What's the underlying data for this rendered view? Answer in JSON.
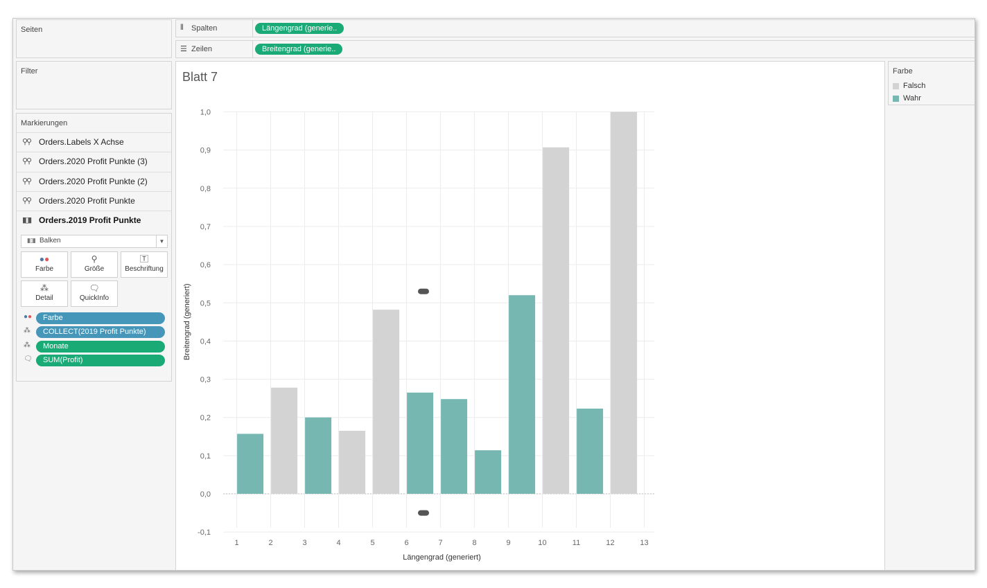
{
  "panels": {
    "pages_title": "Seiten",
    "filter_title": "Filter",
    "marks_title": "Markierungen"
  },
  "layers": [
    {
      "label": "Orders.Labels X Achse",
      "icon": "map-marks-icon"
    },
    {
      "label": "Orders.2020 Profit Punkte (3)",
      "icon": "map-marks-icon"
    },
    {
      "label": "Orders.2020 Profit Punkte (2)",
      "icon": "map-marks-icon"
    },
    {
      "label": "Orders.2020 Profit Punkte",
      "icon": "map-marks-icon"
    },
    {
      "label": "Orders.2019 Profit Punkte",
      "icon": "bar-marks-icon",
      "active": true
    }
  ],
  "mark_type": {
    "value": "Balken",
    "icon": "bar-chart-icon"
  },
  "mark_buttons": {
    "color": "Farbe",
    "size": "Größe",
    "label": "Beschriftung",
    "detail": "Detail",
    "tooltip": "QuickInfo"
  },
  "mark_pills": [
    {
      "text": "Farbe",
      "icon": "color-dots-icon",
      "color": "#4596b8"
    },
    {
      "text": "COLLECT(2019 Profit Punkte)",
      "icon": "detail-icon",
      "color": "#4596b8"
    },
    {
      "text": "Monate",
      "icon": "detail-icon",
      "color": "#1aaa75"
    },
    {
      "text": "SUM(Profit)",
      "icon": "tooltip-icon",
      "color": "#1aaa75"
    }
  ],
  "shelves": {
    "columns": {
      "label": "Spalten",
      "pill": "Längengrad (generie.."
    },
    "rows": {
      "label": "Zeilen",
      "pill": "Breitengrad (generie.."
    }
  },
  "sheet_title": "Blatt 7",
  "legend": {
    "title": "Farbe",
    "items": [
      {
        "label": "Falsch",
        "color": "#d3d3d3"
      },
      {
        "label": "Wahr",
        "color": "#76b7b2"
      }
    ]
  },
  "chart_data": {
    "type": "bar",
    "xlabel": "Längengrad (generiert)",
    "ylabel": "Breitengrad (generiert)",
    "xlim": [
      0.5,
      13
    ],
    "ylim": [
      -0.1,
      1.0
    ],
    "x_ticks": [
      "1",
      "2",
      "3",
      "4",
      "5",
      "6",
      "7",
      "8",
      "9",
      "10",
      "11",
      "12",
      "13"
    ],
    "y_ticks": [
      "1,0",
      "0,9",
      "0,8",
      "0,7",
      "0,6",
      "0,5",
      "0,4",
      "0,3",
      "0,2",
      "0,1",
      "0,0",
      "-0,1"
    ],
    "grid": true,
    "colors": {
      "Wahr": "#76b7b2",
      "Falsch": "#d3d3d3"
    },
    "bars": [
      {
        "x": 1.4,
        "value": 0.157,
        "group": "Wahr"
      },
      {
        "x": 2.4,
        "value": 0.278,
        "group": "Falsch"
      },
      {
        "x": 3.4,
        "value": 0.2,
        "group": "Wahr"
      },
      {
        "x": 4.4,
        "value": 0.165,
        "group": "Falsch"
      },
      {
        "x": 5.4,
        "value": 0.482,
        "group": "Falsch"
      },
      {
        "x": 6.4,
        "value": 0.265,
        "group": "Wahr"
      },
      {
        "x": 7.4,
        "value": 0.248,
        "group": "Wahr"
      },
      {
        "x": 8.4,
        "value": 0.114,
        "group": "Wahr"
      },
      {
        "x": 9.4,
        "value": 0.52,
        "group": "Wahr"
      },
      {
        "x": 10.4,
        "value": 0.907,
        "group": "Falsch"
      },
      {
        "x": 11.4,
        "value": 0.223,
        "group": "Wahr"
      },
      {
        "x": 12.4,
        "value": 1.0,
        "group": "Falsch"
      }
    ],
    "markers": [
      {
        "x": 6.5,
        "y": 0.53
      },
      {
        "x": 6.5,
        "y": -0.05
      }
    ]
  }
}
